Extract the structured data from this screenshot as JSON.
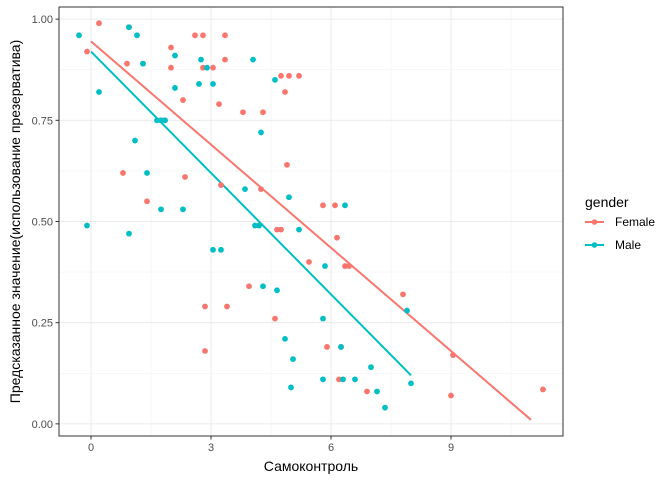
{
  "chart_data": {
    "type": "scatter",
    "xlabel": "Самоконтроль",
    "ylabel": "Предсказанное значение(использование презерватива)",
    "xlim": [
      -0.8,
      11.8
    ],
    "ylim": [
      -0.03,
      1.03
    ],
    "x_ticks": [
      0,
      3,
      6,
      9
    ],
    "x_tick_labels": [
      "0",
      "3",
      "6",
      "9"
    ],
    "y_ticks": [
      0,
      0.25,
      0.5,
      0.75,
      1.0
    ],
    "y_tick_labels": [
      "0.00",
      "0.25",
      "0.50",
      "0.75",
      "1.00"
    ],
    "grid": true,
    "legend": {
      "title": "gender",
      "position": "right",
      "entries": [
        "Female",
        "Male"
      ]
    },
    "series": [
      {
        "name": "Female",
        "color": "#F8766D",
        "points": [
          [
            -0.1,
            0.92
          ],
          [
            0.2,
            0.99
          ],
          [
            0.9,
            0.89
          ],
          [
            0.95,
            0.98
          ],
          [
            0.8,
            0.62
          ],
          [
            1.3,
            0.89
          ],
          [
            1.4,
            0.55
          ],
          [
            1.85,
            0.75
          ],
          [
            2.0,
            0.93
          ],
          [
            2.0,
            0.88
          ],
          [
            2.3,
            0.8
          ],
          [
            2.35,
            0.61
          ],
          [
            2.6,
            0.96
          ],
          [
            2.8,
            0.96
          ],
          [
            2.8,
            0.88
          ],
          [
            2.85,
            0.29
          ],
          [
            2.85,
            0.18
          ],
          [
            3.05,
            0.88
          ],
          [
            3.2,
            0.79
          ],
          [
            3.25,
            0.59
          ],
          [
            3.35,
            0.96
          ],
          [
            3.4,
            0.29
          ],
          [
            3.35,
            0.9
          ],
          [
            3.8,
            0.77
          ],
          [
            3.95,
            0.34
          ],
          [
            4.2,
            0.49
          ],
          [
            4.25,
            0.58
          ],
          [
            4.3,
            0.77
          ],
          [
            4.6,
            0.26
          ],
          [
            4.65,
            0.48
          ],
          [
            4.75,
            0.48
          ],
          [
            4.75,
            0.86
          ],
          [
            4.85,
            0.82
          ],
          [
            4.9,
            0.64
          ],
          [
            4.95,
            0.86
          ],
          [
            5.2,
            0.86
          ],
          [
            5.45,
            0.4
          ],
          [
            5.8,
            0.54
          ],
          [
            5.9,
            0.19
          ],
          [
            6.1,
            0.54
          ],
          [
            6.15,
            0.46
          ],
          [
            6.25,
            0.19
          ],
          [
            6.35,
            0.39
          ],
          [
            6.45,
            0.39
          ],
          [
            6.2,
            0.11
          ],
          [
            6.9,
            0.08
          ],
          [
            7.8,
            0.32
          ],
          [
            9.05,
            0.17
          ],
          [
            9.0,
            0.07
          ],
          [
            11.3,
            0.085
          ]
        ],
        "fit": {
          "x": [
            0.0,
            11.0
          ],
          "y": [
            0.945,
            0.01
          ]
        }
      },
      {
        "name": "Male",
        "color": "#00BFC4",
        "points": [
          [
            -0.3,
            0.96
          ],
          [
            -0.1,
            0.49
          ],
          [
            0.2,
            0.82
          ],
          [
            0.95,
            0.98
          ],
          [
            0.95,
            0.47
          ],
          [
            1.1,
            0.7
          ],
          [
            1.15,
            0.96
          ],
          [
            1.3,
            0.89
          ],
          [
            1.4,
            0.62
          ],
          [
            1.65,
            0.75
          ],
          [
            1.75,
            0.53
          ],
          [
            1.75,
            0.75
          ],
          [
            1.85,
            0.75
          ],
          [
            2.1,
            0.91
          ],
          [
            2.1,
            0.83
          ],
          [
            2.3,
            0.53
          ],
          [
            2.7,
            0.84
          ],
          [
            2.75,
            0.9
          ],
          [
            2.9,
            0.88
          ],
          [
            3.05,
            0.84
          ],
          [
            3.05,
            0.43
          ],
          [
            3.25,
            0.43
          ],
          [
            3.85,
            0.58
          ],
          [
            4.05,
            0.9
          ],
          [
            4.1,
            0.49
          ],
          [
            4.2,
            0.49
          ],
          [
            4.25,
            0.72
          ],
          [
            4.3,
            0.34
          ],
          [
            4.6,
            0.85
          ],
          [
            4.65,
            0.33
          ],
          [
            4.85,
            0.21
          ],
          [
            4.95,
            0.56
          ],
          [
            5.0,
            0.09
          ],
          [
            5.05,
            0.16
          ],
          [
            5.2,
            0.48
          ],
          [
            5.8,
            0.26
          ],
          [
            5.85,
            0.39
          ],
          [
            5.8,
            0.11
          ],
          [
            6.25,
            0.19
          ],
          [
            6.35,
            0.54
          ],
          [
            6.3,
            0.11
          ],
          [
            6.6,
            0.11
          ],
          [
            7.0,
            0.14
          ],
          [
            7.15,
            0.08
          ],
          [
            7.35,
            0.04
          ],
          [
            7.9,
            0.28
          ],
          [
            8.0,
            0.1
          ]
        ],
        "fit": {
          "x": [
            0.0,
            8.0
          ],
          "y": [
            0.92,
            0.12
          ]
        }
      }
    ]
  }
}
